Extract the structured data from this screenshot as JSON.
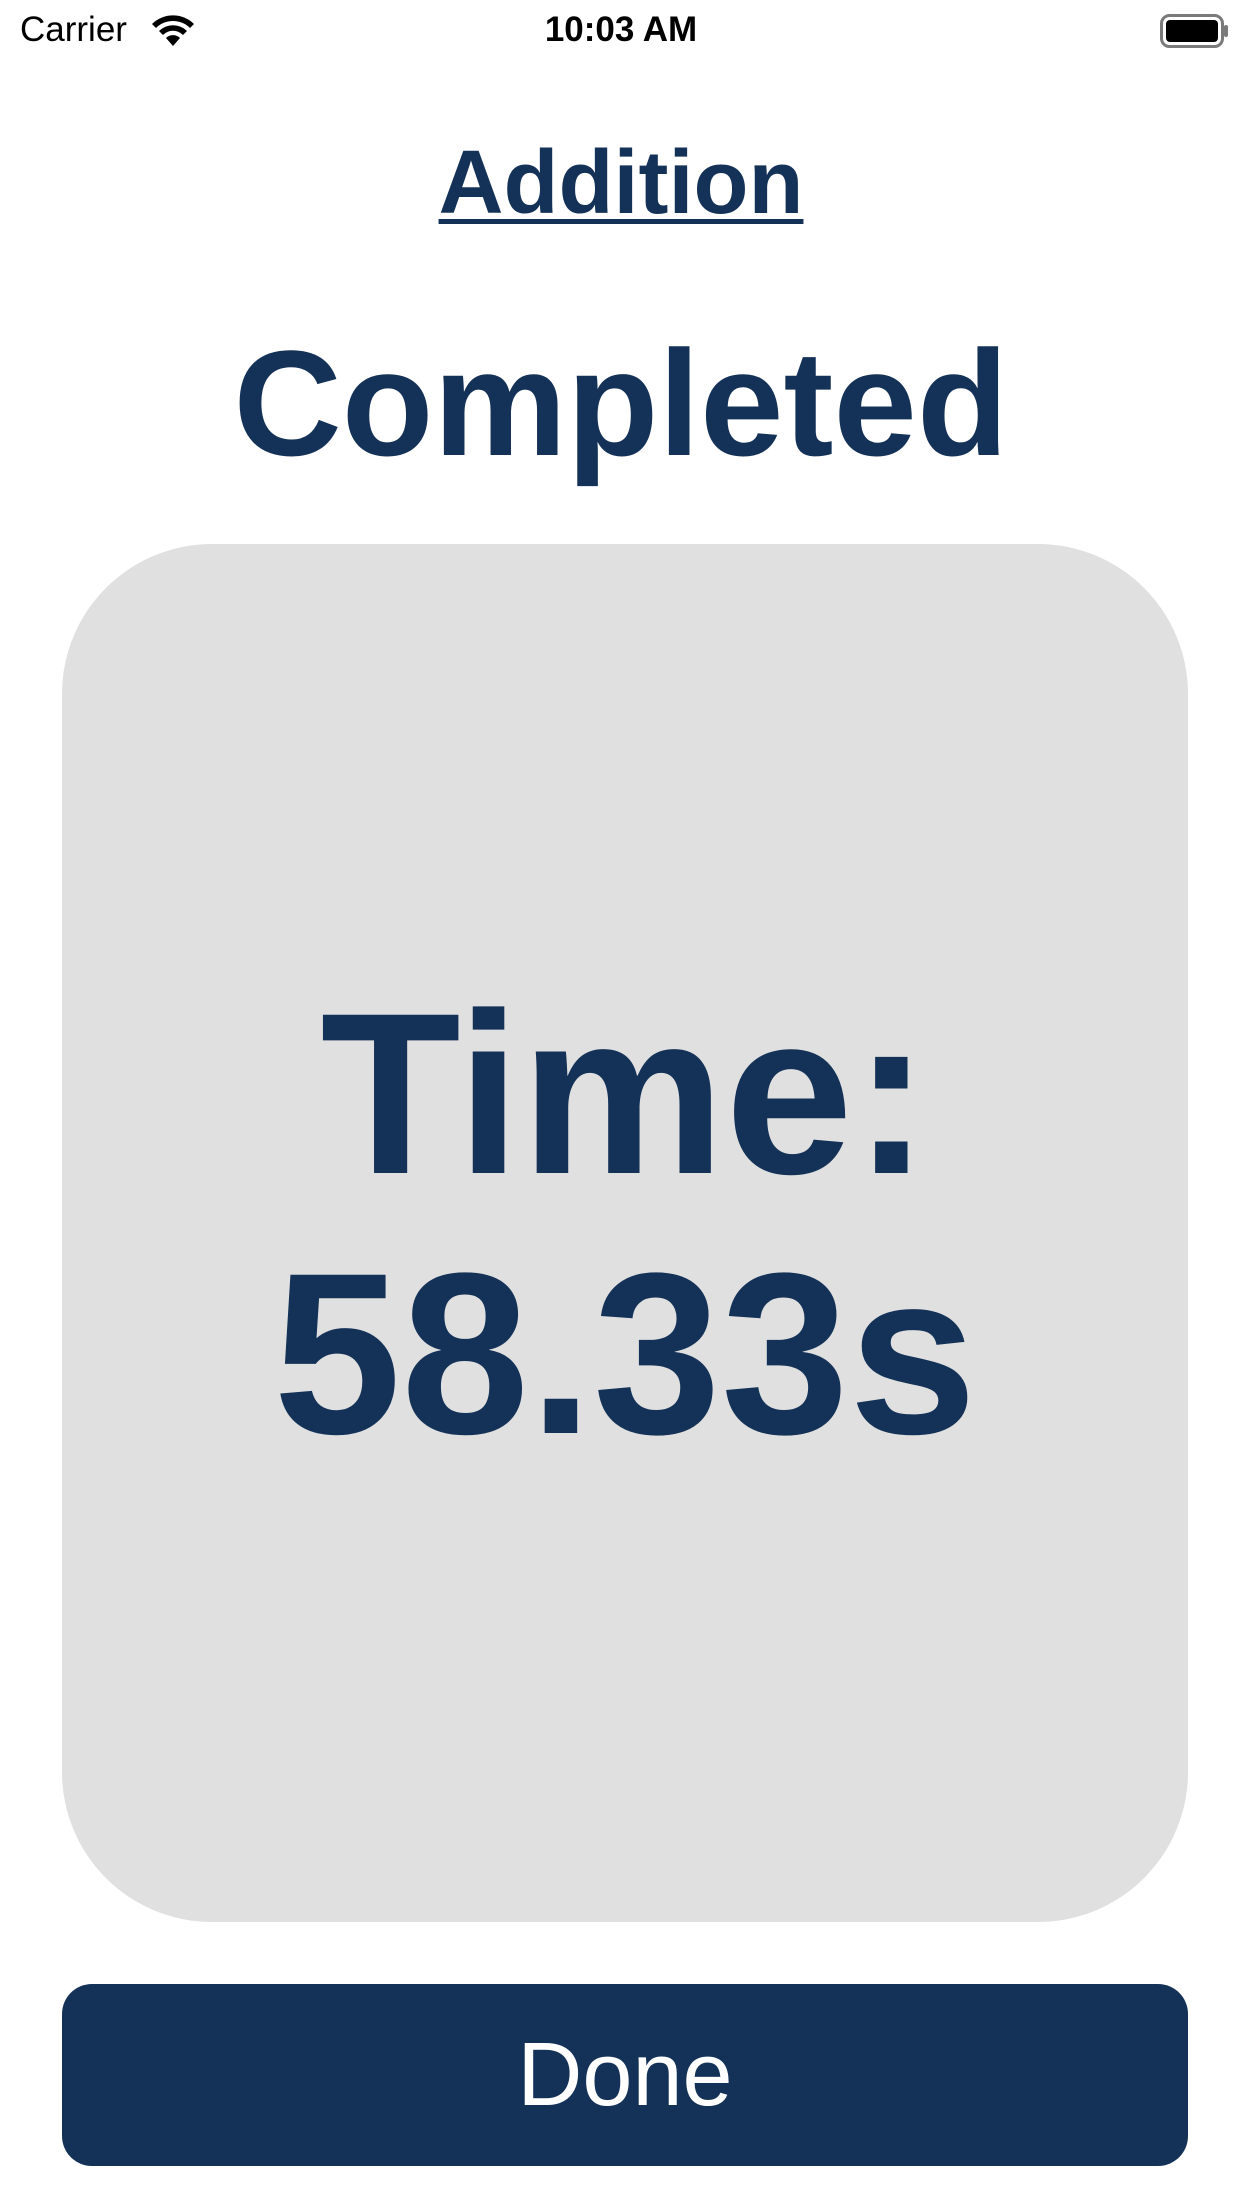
{
  "status_bar": {
    "carrier": "Carrier",
    "time": "10:03 AM",
    "wifi_icon": "wifi-icon",
    "battery_icon": "battery-full-icon"
  },
  "header": {
    "subject": "Addition",
    "status": "Completed"
  },
  "result_card": {
    "label": "Time:",
    "value": "58.33s"
  },
  "done_button": {
    "label": "Done"
  },
  "colors": {
    "primary": "#143257",
    "card_background": "#e0e0e0",
    "background": "#ffffff",
    "button_text": "#ffffff"
  }
}
